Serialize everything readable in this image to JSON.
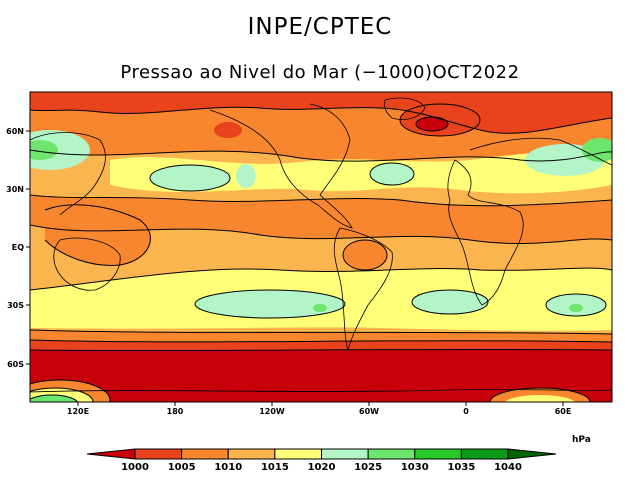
{
  "header": {
    "agency": "INPE/CPTEC",
    "product": "Pressao ao Nivel do Mar (−1000)OCT2022"
  },
  "axes": {
    "lon_labels": [
      "120E",
      "180",
      "120W",
      "60W",
      "0",
      "60E"
    ],
    "lat_labels": [
      "60N",
      "30N",
      "EQ",
      "30S",
      "60S"
    ]
  },
  "legend": {
    "unit": "hPa",
    "levels": [
      "1000",
      "1005",
      "1010",
      "1015",
      "1020",
      "1025",
      "1030",
      "1035",
      "1040"
    ],
    "colors": [
      "#c8000a",
      "#e8431c",
      "#f7862e",
      "#fbb54f",
      "#ffff78",
      "#b4f5c8",
      "#6ee66e",
      "#28c828",
      "#0a9b19",
      "#006400"
    ]
  }
}
